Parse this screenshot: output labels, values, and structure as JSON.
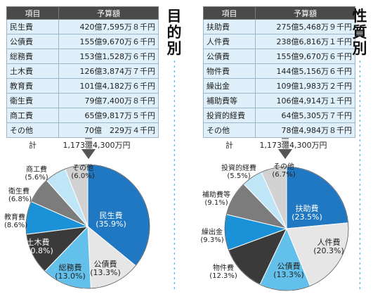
{
  "left": {
    "title": "目的別",
    "headers": {
      "item": "項目",
      "amount": "予算額"
    },
    "rows": [
      {
        "name": "民生費",
        "amount": "420億7,595万８千円"
      },
      {
        "name": "公債費",
        "amount": "155億9,670万６千円"
      },
      {
        "name": "総務費",
        "amount": "153億1,528万６千円"
      },
      {
        "name": "土木費",
        "amount": "126億3,874万７千円"
      },
      {
        "name": "教育費",
        "amount": "101億4,182万６千円"
      },
      {
        "name": "衛生費",
        "amount": "79億7,400万８千円"
      },
      {
        "name": "商工費",
        "amount": "65億9,817万５千円"
      },
      {
        "name": "その他",
        "amount": "70億　229万４千円"
      }
    ],
    "total": {
      "label": "計",
      "amount": "1,173億4,300万円"
    }
  },
  "right": {
    "title": "性質別",
    "headers": {
      "item": "項目",
      "amount": "予算額"
    },
    "rows": [
      {
        "name": "扶助費",
        "amount": "275億5,468万９千円"
      },
      {
        "name": "人件費",
        "amount": "238億6,816万１千円"
      },
      {
        "name": "公債費",
        "amount": "155億9,670万６千円"
      },
      {
        "name": "物件費",
        "amount": "144億5,156万６千円"
      },
      {
        "name": "繰出金",
        "amount": "109億1,983万２千円"
      },
      {
        "name": "補助費等",
        "amount": "106億4,914万１千円"
      },
      {
        "name": "投資的経費",
        "amount": "64億5,305万７千円"
      },
      {
        "name": "その他",
        "amount": "78億4,984万８千円"
      }
    ],
    "total": {
      "label": "計",
      "amount": "1,173億4,300万円"
    }
  },
  "chart_data": [
    {
      "type": "pie",
      "title": "",
      "slices": [
        {
          "label": "民生費",
          "pct": "(35.9%)",
          "value": 35.9,
          "color": "#1f78c1",
          "text_color": "#ffffff"
        },
        {
          "label": "公債費",
          "pct": "(13.3%)",
          "value": 13.3,
          "color": "#e6e6e6",
          "text_color": "#222222"
        },
        {
          "label": "総務費",
          "pct": "(13.0%)",
          "value": 13.0,
          "color": "#62c0ea",
          "text_color": "#222222"
        },
        {
          "label": "土木費",
          "pct": "(10.8%)",
          "value": 10.8,
          "color": "#3a3a3a",
          "text_color": "#ffffff"
        },
        {
          "label": "教育費",
          "pct": "(8.6%)",
          "value": 8.6,
          "color": "#1b92d8",
          "text_color": "#222222"
        },
        {
          "label": "衛生費",
          "pct": "(6.8%)",
          "value": 6.8,
          "color": "#7c7c7c",
          "text_color": "#222222"
        },
        {
          "label": "商工費",
          "pct": "(5.6%)",
          "value": 5.6,
          "color": "#bfe6f7",
          "text_color": "#222222"
        },
        {
          "label": "その他",
          "pct": "(6.0%)",
          "value": 6.0,
          "color": "#d2d2d2",
          "text_color": "#222222"
        }
      ]
    },
    {
      "type": "pie",
      "title": "",
      "slices": [
        {
          "label": "扶助費",
          "pct": "(23.5%)",
          "value": 23.5,
          "color": "#1f78c1",
          "text_color": "#ffffff"
        },
        {
          "label": "人件費",
          "pct": "(20.3%)",
          "value": 20.3,
          "color": "#e6e6e6",
          "text_color": "#222222"
        },
        {
          "label": "公債費",
          "pct": "(13.3%)",
          "value": 13.3,
          "color": "#62c0ea",
          "text_color": "#222222"
        },
        {
          "label": "物件費",
          "pct": "(12.3%)",
          "value": 12.3,
          "color": "#3a3a3a",
          "text_color": "#222222"
        },
        {
          "label": "繰出金",
          "pct": "(9.3%)",
          "value": 9.3,
          "color": "#1b92d8",
          "text_color": "#222222"
        },
        {
          "label": "補助費等",
          "pct": "(9.1%)",
          "value": 9.1,
          "color": "#7c7c7c",
          "text_color": "#222222"
        },
        {
          "label": "投資的経費",
          "pct": "(5.5%)",
          "value": 5.5,
          "color": "#bfe6f7",
          "text_color": "#222222"
        },
        {
          "label": "その他",
          "pct": "(6.7%)",
          "value": 6.7,
          "color": "#d2d2d2",
          "text_color": "#222222"
        }
      ]
    }
  ]
}
